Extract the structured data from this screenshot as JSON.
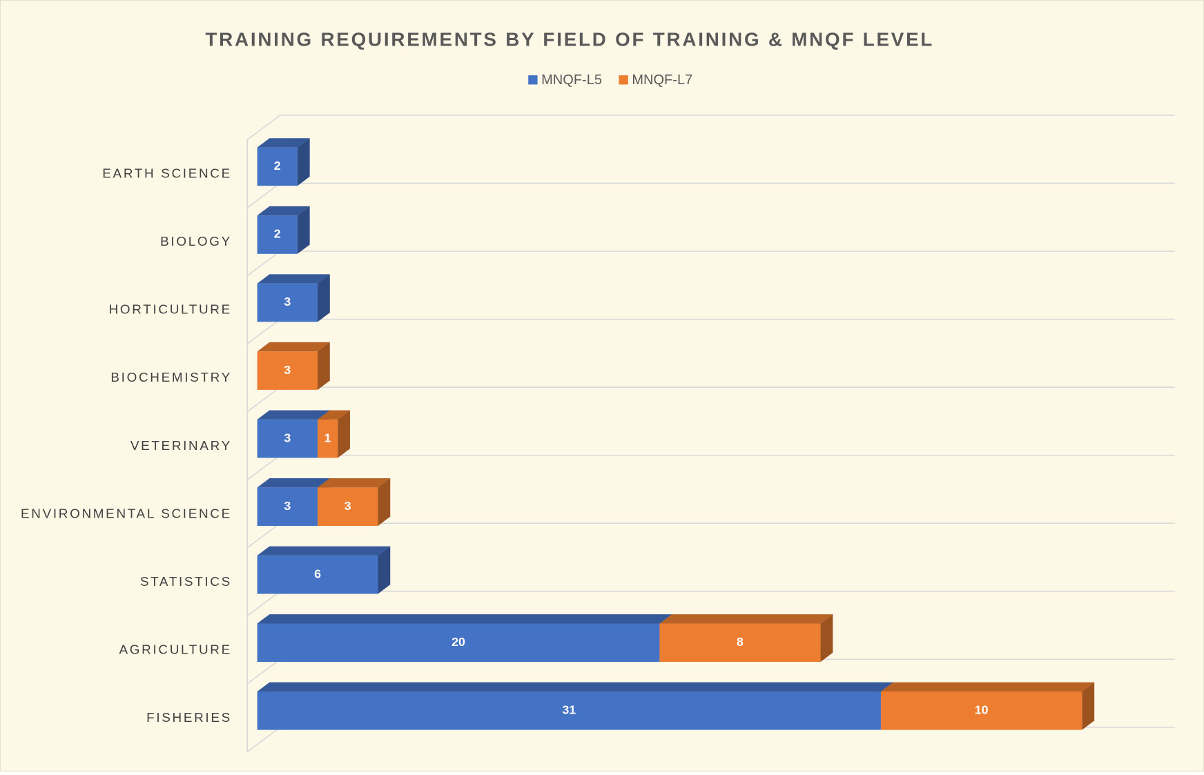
{
  "chart_data": {
    "type": "bar3d_stacked_horizontal",
    "title": "TRAINING REQUIREMENTS BY FIELD OF TRAINING & MNQF LEVEL",
    "categories": [
      "EARTH SCIENCE",
      "BIOLOGY",
      "HORTICULTURE",
      "BIOCHEMISTRY",
      "VETERINARY",
      "ENVIRONMENTAL SCIENCE",
      "STATISTICS",
      "AGRICULTURE",
      "FISHERIES"
    ],
    "series": [
      {
        "name": "MNQF-L5",
        "color": "#4472c4",
        "values": [
          2,
          2,
          3,
          null,
          3,
          3,
          6,
          20,
          31
        ]
      },
      {
        "name": "MNQF-L7",
        "color": "#ed7d31",
        "values": [
          null,
          null,
          null,
          3,
          1,
          3,
          null,
          8,
          10
        ]
      }
    ],
    "xlim": [
      0,
      45
    ],
    "legend": "top",
    "grid": true
  }
}
